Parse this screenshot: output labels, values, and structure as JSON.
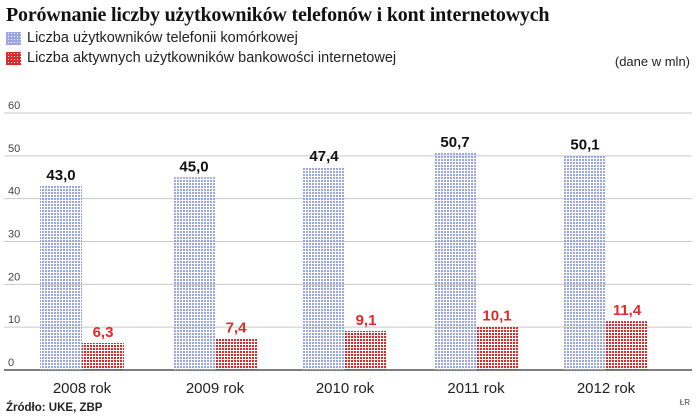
{
  "title": "Porównanie liczby użytkowników telefonów i kont internetowych",
  "units": "(dane w mln)",
  "source": "Źródło: UKE, ZBP",
  "credit": "ŁR",
  "colors": {
    "blue": "#9aa6e6",
    "red": "#e02a2a",
    "grid": "#c9c9c9"
  },
  "chart_data": {
    "type": "bar",
    "title": "Porównanie liczby użytkowników telefonów i kont internetowych",
    "xlabel": "",
    "ylabel": "",
    "ylim": [
      0,
      60
    ],
    "yticks": [
      0,
      10,
      20,
      30,
      40,
      50,
      60
    ],
    "grid": true,
    "legend": "top-left",
    "categories": [
      "2008 rok",
      "2009 rok",
      "2010 rok",
      "2011 rok",
      "2012 rok"
    ],
    "series": [
      {
        "name": "Liczba użytkowników telefonii komórkowej",
        "color": "#9aa6e6",
        "values": [
          43.0,
          45.0,
          47.4,
          50.7,
          50.1
        ],
        "labels": [
          "43,0",
          "45,0",
          "47,4",
          "50,7",
          "50,1"
        ]
      },
      {
        "name": "Liczba aktywnych użytkowników bankowości internetowej",
        "color": "#e02a2a",
        "values": [
          6.3,
          7.4,
          9.1,
          10.1,
          11.4
        ],
        "labels": [
          "6,3",
          "7,4",
          "9,1",
          "10,1",
          "11,4"
        ]
      }
    ]
  }
}
